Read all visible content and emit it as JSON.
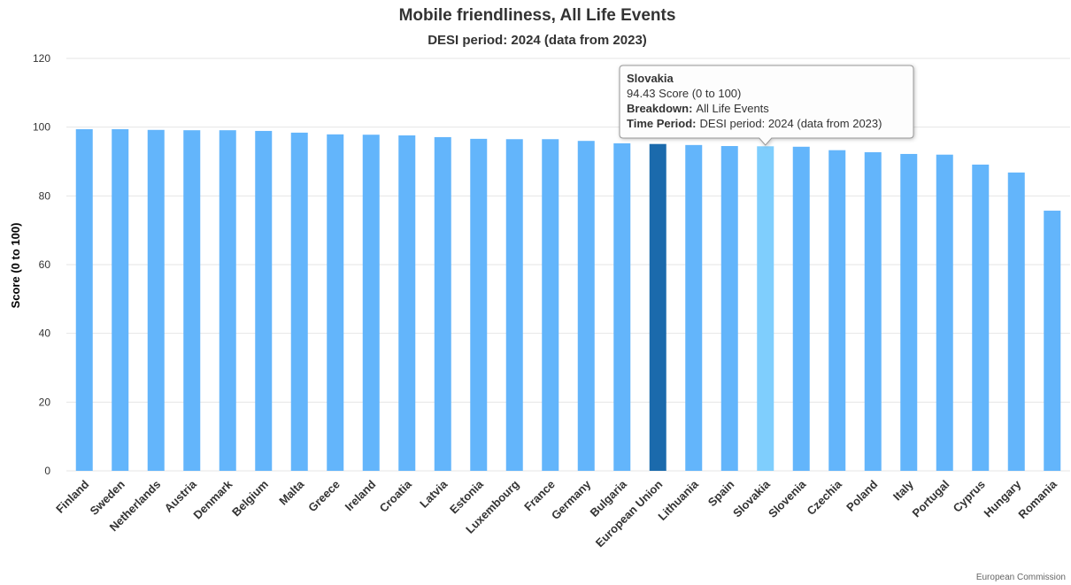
{
  "chart_data": {
    "type": "bar",
    "title": "Mobile friendliness, All Life Events",
    "subtitle": "DESI period: 2024 (data from 2023)",
    "y_label": "Score (0 to 100)",
    "credit": "European Commission",
    "categories": [
      "Finland",
      "Sweden",
      "Netherlands",
      "Austria",
      "Denmark",
      "Belgium",
      "Malta",
      "Greece",
      "Ireland",
      "Croatia",
      "Latvia",
      "Estonia",
      "Luxembourg",
      "France",
      "Germany",
      "Bulgaria",
      "European Union",
      "Lithuania",
      "Spain",
      "Slovakia",
      "Slovenia",
      "Czechia",
      "Poland",
      "Italy",
      "Portugal",
      "Cyprus",
      "Hungary",
      "Romania"
    ],
    "values": [
      99.4,
      99.4,
      99.2,
      99.1,
      99.1,
      98.9,
      98.4,
      97.9,
      97.8,
      97.6,
      97.1,
      96.6,
      96.5,
      96.5,
      96.0,
      95.3,
      95.1,
      94.8,
      94.5,
      94.43,
      94.3,
      93.3,
      92.7,
      92.2,
      92.0,
      89.1,
      86.8,
      75.7
    ],
    "colors": [
      "#63b5fb",
      "#63b5fb",
      "#63b5fb",
      "#63b5fb",
      "#63b5fb",
      "#63b5fb",
      "#63b5fb",
      "#63b5fb",
      "#63b5fb",
      "#63b5fb",
      "#63b5fb",
      "#63b5fb",
      "#63b5fb",
      "#63b5fb",
      "#63b5fb",
      "#63b5fb",
      "#1b6aac",
      "#63b5fb",
      "#63b5fb",
      "#7fcefd",
      "#63b5fb",
      "#63b5fb",
      "#63b5fb",
      "#63b5fb",
      "#63b5fb",
      "#63b5fb",
      "#63b5fb",
      "#63b5fb"
    ],
    "ylim": [
      0,
      120
    ],
    "yticks": [
      0,
      20,
      40,
      60,
      80,
      100,
      120
    ],
    "grid": true,
    "tooltip": {
      "title": "Slovakia",
      "value": "94.43 Score (0 to 100)",
      "lines": [
        {
          "label": "Breakdown:",
          "text": "All Life Events"
        },
        {
          "label": "Time Period:",
          "text": "DESI period: 2024 (data from 2023)"
        }
      ]
    }
  }
}
